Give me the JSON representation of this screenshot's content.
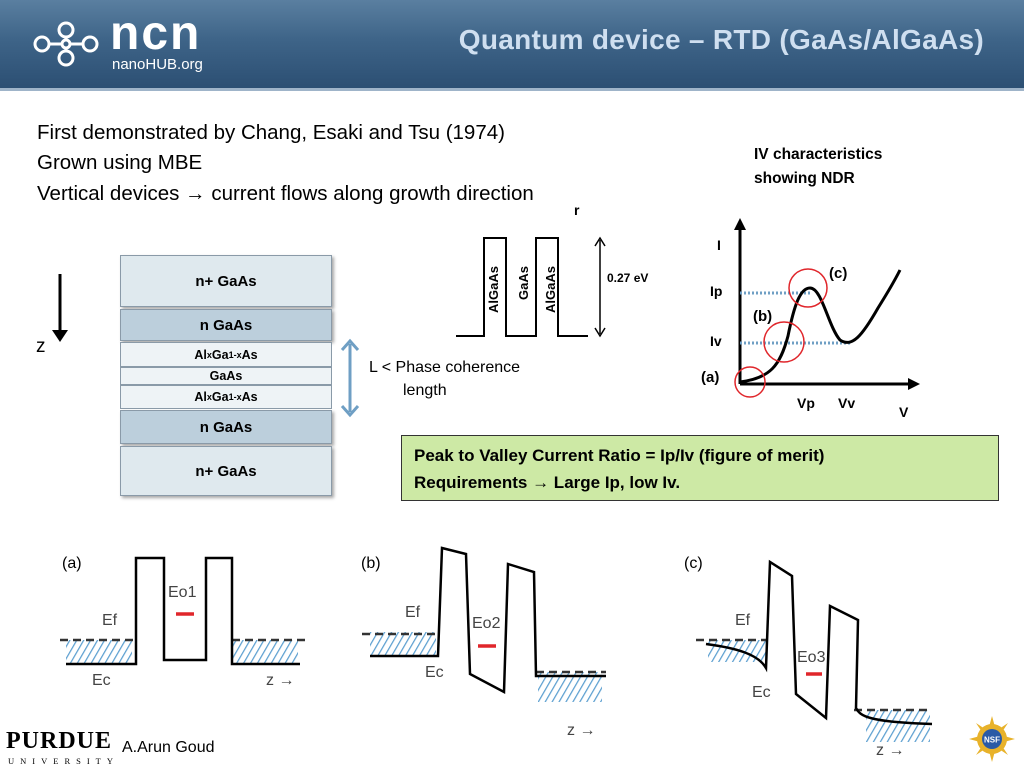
{
  "header": {
    "title": "Quantum device – RTD (GaAs/AlGaAs)",
    "logo_text": "ncn",
    "logo_subtitle": "nanoHUB.org"
  },
  "bullets": [
    "First demonstrated by Chang, Esaki and Tsu (1974)",
    "Grown using MBE",
    "Vertical devices → current flows along growth direction"
  ],
  "stack": {
    "axis_label": "z",
    "layers": [
      {
        "label": "n+ GaAs"
      },
      {
        "label": "n GaAs"
      },
      {
        "label_main": "Al",
        "label_sub1": "x",
        "label_mid": "Ga",
        "label_sub2": "1-x",
        "label_end": "As"
      },
      {
        "label": "GaAs"
      },
      {
        "label_main": "Al",
        "label_sub1": "x",
        "label_mid": "Ga",
        "label_sub2": "1-x",
        "label_end": "As"
      },
      {
        "label": "n GaAs"
      },
      {
        "label": "n+ GaAs"
      }
    ],
    "coherence_note_1": "L < Phase coherence",
    "coherence_note_2": "length"
  },
  "barrier_profile": {
    "labels": [
      "AlGaAs",
      "GaAs",
      "AlGaAs"
    ],
    "height_label": "0.27 eV",
    "top_mark": "r"
  },
  "iv": {
    "caption_line1": "IV characteristics",
    "caption_line2": "showing NDR",
    "y_axis": "I",
    "x_axis": "V",
    "ip": "Ip",
    "iv": "Iv",
    "vp": "Vp",
    "vv": "Vv",
    "point_a": "(a)",
    "point_b": "(b)",
    "point_c": "(c)"
  },
  "merit": {
    "line1": "Peak to Valley Current Ratio = Ip/Iv   (figure of merit)",
    "line2": "Requirements → Large Ip, low Iv."
  },
  "band_diagrams": [
    {
      "tag": "(a)",
      "ef": "Ef",
      "ec": "Ec",
      "eo": "Eo1",
      "z": "z →"
    },
    {
      "tag": "(b)",
      "ef": "Ef",
      "ec": "Ec",
      "eo": "Eo2",
      "z": "z →"
    },
    {
      "tag": "(c)",
      "ef": "Ef",
      "ec": "Ec",
      "eo": "Eo3",
      "z": "z →"
    }
  ],
  "footer": {
    "university": "PURDUE",
    "university_sub": "UNIVERSITY",
    "author": "A.Arun Goud",
    "badge": "NSF"
  },
  "colors": {
    "header": "#3e6488",
    "title": "#cfdff0",
    "merit_box": "#cde9a5",
    "circle": "#e0262b",
    "dotted": "#6f9fc4",
    "hatch": "#5b9fd0",
    "eo_mark": "#e0262b"
  }
}
